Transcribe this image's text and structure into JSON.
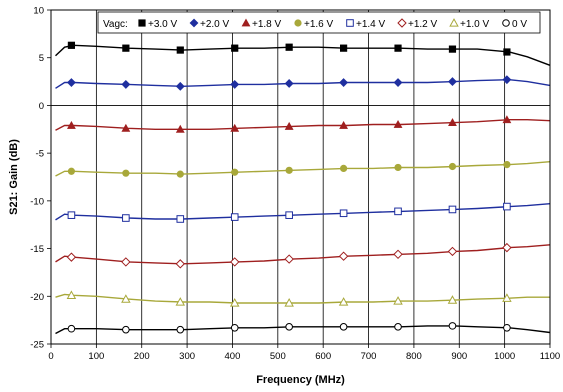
{
  "chart_data": {
    "type": "line",
    "xlabel": "Frequency (MHz)",
    "ylabel": "S21: Gain (dB)",
    "xlim": [
      0,
      1100
    ],
    "ylim": [
      -25,
      10
    ],
    "x_ticks": [
      0,
      100,
      200,
      300,
      400,
      500,
      600,
      700,
      800,
      900,
      1000,
      1100
    ],
    "y_ticks": [
      10,
      5,
      0,
      -5,
      -10,
      -15,
      -20,
      -25
    ],
    "grid": "vertical",
    "legend": {
      "title": "Vagc:",
      "placement": "top"
    },
    "series": [
      {
        "name": "+3.0 V",
        "marker": "square-filled",
        "color": "#000000",
        "x": [
          10,
          30,
          50,
          100,
          170,
          230,
          290,
          350,
          410,
          470,
          530,
          590,
          650,
          710,
          770,
          830,
          890,
          940,
          1010,
          1050,
          1100
        ],
        "y": [
          5.2,
          6.1,
          6.3,
          6.2,
          6.0,
          5.9,
          5.8,
          5.9,
          6.0,
          6.0,
          6.1,
          6.1,
          6.0,
          6.0,
          6.0,
          5.9,
          5.9,
          5.9,
          5.6,
          5.1,
          4.2
        ],
        "marker_x": [
          45,
          165,
          285,
          405,
          525,
          645,
          765,
          885,
          1005
        ],
        "marker_y": [
          6.3,
          6.0,
          5.8,
          6.0,
          6.1,
          6.0,
          6.0,
          5.9,
          5.6
        ]
      },
      {
        "name": "+2.0 V",
        "marker": "diamond-filled",
        "color": "#1f2f9f",
        "x": [
          10,
          30,
          50,
          100,
          170,
          230,
          290,
          350,
          410,
          470,
          530,
          590,
          650,
          710,
          770,
          830,
          890,
          940,
          1010,
          1050,
          1100
        ],
        "y": [
          1.8,
          2.4,
          2.4,
          2.3,
          2.2,
          2.1,
          2.0,
          2.1,
          2.2,
          2.2,
          2.3,
          2.3,
          2.4,
          2.4,
          2.4,
          2.4,
          2.5,
          2.6,
          2.7,
          2.5,
          2.1
        ],
        "marker_x": [
          45,
          165,
          285,
          405,
          525,
          645,
          765,
          885,
          1005
        ],
        "marker_y": [
          2.4,
          2.2,
          2.0,
          2.2,
          2.3,
          2.4,
          2.4,
          2.5,
          2.7
        ]
      },
      {
        "name": "+1.8 V",
        "marker": "triangle-filled",
        "color": "#9f1f1f",
        "x": [
          10,
          30,
          50,
          100,
          170,
          230,
          290,
          350,
          410,
          470,
          530,
          590,
          650,
          710,
          770,
          830,
          890,
          940,
          1010,
          1050,
          1100
        ],
        "y": [
          -2.6,
          -2.1,
          -2.1,
          -2.2,
          -2.4,
          -2.5,
          -2.5,
          -2.5,
          -2.4,
          -2.3,
          -2.2,
          -2.1,
          -2.1,
          -2.0,
          -2.0,
          -1.9,
          -1.8,
          -1.7,
          -1.5,
          -1.5,
          -1.6
        ],
        "marker_x": [
          45,
          165,
          285,
          405,
          525,
          645,
          765,
          885,
          1005
        ],
        "marker_y": [
          -2.1,
          -2.4,
          -2.5,
          -2.4,
          -2.2,
          -2.1,
          -2.0,
          -1.8,
          -1.5
        ]
      },
      {
        "name": "+1.6 V",
        "marker": "circle-filled",
        "color": "#a8a83a",
        "x": [
          10,
          30,
          50,
          100,
          170,
          230,
          290,
          350,
          410,
          470,
          530,
          590,
          650,
          710,
          770,
          830,
          890,
          940,
          1010,
          1050,
          1100
        ],
        "y": [
          -7.4,
          -6.9,
          -6.9,
          -7.0,
          -7.1,
          -7.1,
          -7.2,
          -7.1,
          -7.0,
          -6.9,
          -6.8,
          -6.7,
          -6.6,
          -6.6,
          -6.5,
          -6.5,
          -6.4,
          -6.3,
          -6.2,
          -6.1,
          -5.9
        ],
        "marker_x": [
          45,
          165,
          285,
          405,
          525,
          645,
          765,
          885,
          1005
        ],
        "marker_y": [
          -6.9,
          -7.1,
          -7.2,
          -7.0,
          -6.8,
          -6.6,
          -6.5,
          -6.4,
          -6.2
        ]
      },
      {
        "name": "+1.4 V",
        "marker": "square-open",
        "color": "#1f2f9f",
        "x": [
          10,
          30,
          50,
          100,
          170,
          230,
          290,
          350,
          410,
          470,
          530,
          590,
          650,
          710,
          770,
          830,
          890,
          940,
          1010,
          1050,
          1100
        ],
        "y": [
          -12.0,
          -11.4,
          -11.5,
          -11.6,
          -11.8,
          -11.9,
          -11.9,
          -11.8,
          -11.7,
          -11.6,
          -11.5,
          -11.4,
          -11.3,
          -11.2,
          -11.1,
          -11.0,
          -10.9,
          -10.8,
          -10.6,
          -10.5,
          -10.3
        ],
        "marker_x": [
          45,
          165,
          285,
          405,
          525,
          645,
          765,
          885,
          1005
        ],
        "marker_y": [
          -11.5,
          -11.8,
          -11.9,
          -11.7,
          -11.5,
          -11.3,
          -11.1,
          -10.9,
          -10.6
        ]
      },
      {
        "name": "+1.2 V",
        "marker": "diamond-open",
        "color": "#9f1f1f",
        "x": [
          10,
          30,
          50,
          100,
          170,
          230,
          290,
          350,
          410,
          470,
          530,
          590,
          650,
          710,
          770,
          830,
          890,
          940,
          1010,
          1050,
          1100
        ],
        "y": [
          -16.4,
          -15.8,
          -15.9,
          -16.1,
          -16.4,
          -16.5,
          -16.6,
          -16.5,
          -16.4,
          -16.3,
          -16.1,
          -16.0,
          -15.8,
          -15.7,
          -15.6,
          -15.5,
          -15.3,
          -15.2,
          -14.9,
          -14.8,
          -14.6
        ],
        "marker_x": [
          45,
          165,
          285,
          405,
          525,
          645,
          765,
          885,
          1005
        ],
        "marker_y": [
          -15.9,
          -16.4,
          -16.6,
          -16.4,
          -16.1,
          -15.8,
          -15.6,
          -15.3,
          -14.9
        ]
      },
      {
        "name": "+1.0 V",
        "marker": "triangle-open",
        "color": "#a8a83a",
        "x": [
          10,
          30,
          50,
          100,
          170,
          230,
          290,
          350,
          410,
          470,
          530,
          590,
          650,
          710,
          770,
          830,
          890,
          940,
          1010,
          1050,
          1100
        ],
        "y": [
          -20.1,
          -19.8,
          -19.9,
          -20.0,
          -20.3,
          -20.5,
          -20.6,
          -20.6,
          -20.7,
          -20.7,
          -20.7,
          -20.7,
          -20.6,
          -20.6,
          -20.5,
          -20.5,
          -20.4,
          -20.3,
          -20.2,
          -20.1,
          -20.1
        ],
        "marker_x": [
          45,
          165,
          285,
          405,
          525,
          645,
          765,
          885,
          1005
        ],
        "marker_y": [
          -19.9,
          -20.3,
          -20.6,
          -20.7,
          -20.7,
          -20.6,
          -20.5,
          -20.4,
          -20.2
        ]
      },
      {
        "name": "0 V",
        "marker": "circle-open",
        "color": "#000000",
        "x": [
          10,
          30,
          50,
          100,
          170,
          230,
          290,
          350,
          410,
          470,
          530,
          590,
          650,
          710,
          770,
          830,
          890,
          940,
          1010,
          1050,
          1100
        ],
        "y": [
          -23.9,
          -23.4,
          -23.4,
          -23.4,
          -23.5,
          -23.5,
          -23.5,
          -23.4,
          -23.3,
          -23.3,
          -23.2,
          -23.2,
          -23.2,
          -23.2,
          -23.2,
          -23.1,
          -23.1,
          -23.2,
          -23.3,
          -23.5,
          -23.8
        ],
        "marker_x": [
          45,
          165,
          285,
          405,
          525,
          645,
          765,
          885,
          1005
        ],
        "marker_y": [
          -23.4,
          -23.5,
          -23.5,
          -23.3,
          -23.2,
          -23.2,
          -23.2,
          -23.1,
          -23.3
        ]
      }
    ]
  }
}
